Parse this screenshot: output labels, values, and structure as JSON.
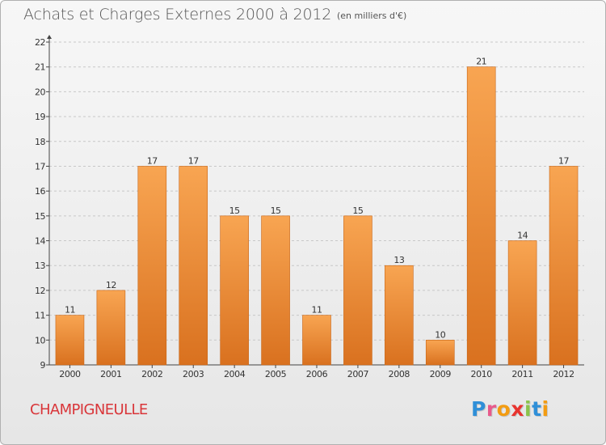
{
  "header": {
    "title": "Achats et Charges Externes 2000 à 2012",
    "subtitle": "(en milliers d'€)"
  },
  "footer": {
    "commune": "CHAMPIGNEULLE",
    "logo_letters": [
      "P",
      "r",
      "o",
      "x",
      "i",
      "t",
      "i"
    ],
    "logo_colors": [
      "#2f8fd8",
      "#e85a8c",
      "#f39c12",
      "#e8342f",
      "#8bc34a",
      "#2f8fd8",
      "#f39c12"
    ]
  },
  "colors": {
    "bar_top": "#f8a552",
    "bar_bottom": "#d9711f",
    "bar_edge": "#c86516",
    "axis": "#444444",
    "grid": "#c8c8c8",
    "text": "#333333",
    "commune": "#d9363a"
  },
  "chart_data": {
    "type": "bar",
    "title": "Achats et Charges Externes 2000 à 2012",
    "subtitle": "(en milliers d'€)",
    "xlabel": "",
    "ylabel": "",
    "categories": [
      "2000",
      "2001",
      "2002",
      "2003",
      "2004",
      "2005",
      "2006",
      "2007",
      "2008",
      "2009",
      "2010",
      "2011",
      "2012"
    ],
    "values": [
      11,
      12,
      17,
      17,
      15,
      15,
      11,
      15,
      13,
      10,
      21,
      14,
      17
    ],
    "ylim": [
      9,
      22
    ],
    "yticks": [
      9,
      10,
      11,
      12,
      13,
      14,
      15,
      16,
      17,
      18,
      19,
      20,
      21,
      22
    ],
    "grid": "horizontal dashed",
    "legend": "none"
  }
}
